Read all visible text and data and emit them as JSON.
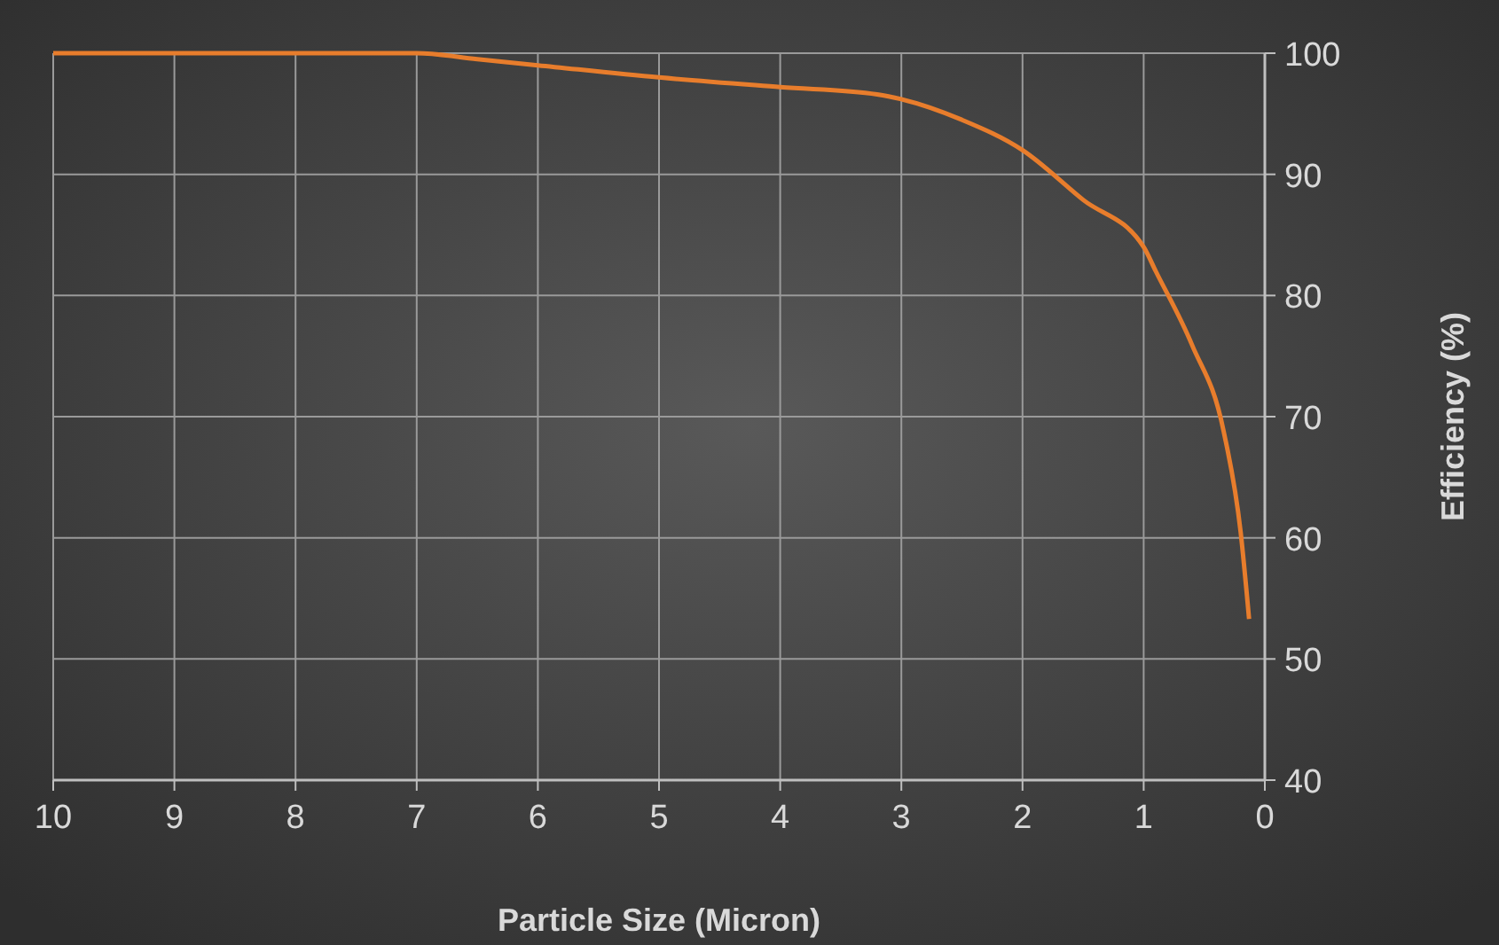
{
  "chart_data": {
    "type": "line",
    "xlabel": "Particle Size (Micron)",
    "ylabel": "Efficiency (%)",
    "x": [
      10,
      9,
      8,
      7,
      6.5,
      6,
      5,
      4,
      3.2,
      3,
      2.5,
      2,
      1.5,
      1,
      0.9,
      0.6,
      0.34,
      0.2,
      0.13
    ],
    "series": [
      {
        "color": "#e87d2c",
        "values": [
          100,
          100,
          100,
          100,
          99.5,
          99,
          98,
          97.2,
          96.6,
          96.2,
          94.5,
          92,
          87.9,
          84,
          82,
          75.9,
          68.8,
          60.5,
          53.3
        ]
      }
    ],
    "xlim": [
      10,
      0
    ],
    "xticks": [
      10,
      9,
      8,
      7,
      6,
      5,
      4,
      3,
      2,
      1,
      0
    ],
    "ylim": [
      40,
      100
    ],
    "yticks": [
      40,
      50,
      60,
      70,
      80,
      90,
      100
    ],
    "grid": true,
    "marker": "none",
    "line_style": "solid"
  }
}
